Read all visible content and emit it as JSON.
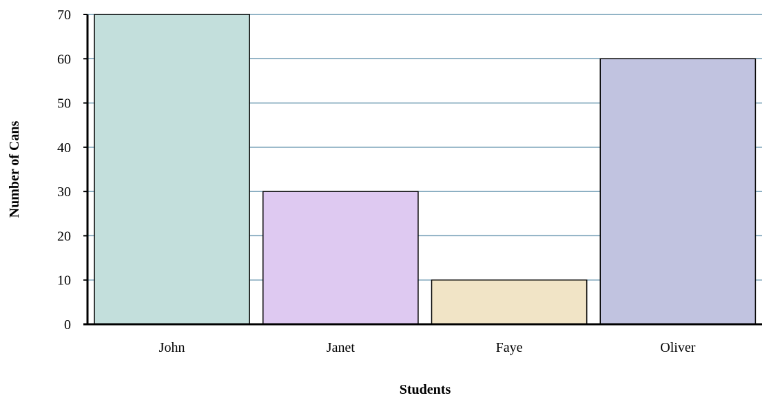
{
  "chart_data": {
    "type": "bar",
    "title": "",
    "xlabel": "Students",
    "ylabel": "Number of Cans",
    "categories": [
      "John",
      "Janet",
      "Faye",
      "Oliver"
    ],
    "values": [
      70,
      30,
      10,
      60
    ],
    "ylim": [
      0,
      70
    ],
    "yticks": [
      0,
      10,
      20,
      30,
      40,
      50,
      60,
      70
    ],
    "grid": true,
    "legend": "none",
    "colors": {
      "bars": [
        "#c3dfdc",
        "#dec9f1",
        "#f1e4c6",
        "#c1c3e0"
      ],
      "bar_outline": "#000000",
      "gridline": "#6f9bb3",
      "axis": "#000000"
    }
  }
}
